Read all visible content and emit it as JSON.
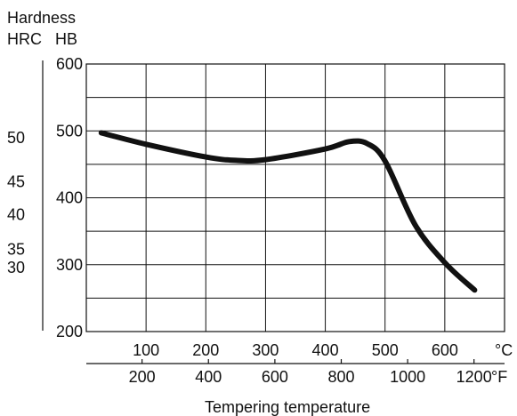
{
  "chart_data": {
    "type": "line",
    "ylabel": "Hardness",
    "y_units": {
      "hrc": "HRC",
      "hb": "HB"
    },
    "xlabel": "Tempering temperature",
    "x_unit_c": "°C",
    "x_unit_f": "°F",
    "xlim_c": [
      0,
      700
    ],
    "ylim_hb": [
      200,
      600
    ],
    "grid": true,
    "hb_ticks": [
      200,
      300,
      400,
      500,
      600
    ],
    "hrc_ticks": [
      {
        "label": "50",
        "hb": 490
      },
      {
        "label": "45",
        "hb": 424
      },
      {
        "label": "40",
        "hb": 375
      },
      {
        "label": "35",
        "hb": 323
      },
      {
        "label": "30",
        "hb": 296
      }
    ],
    "c_ticks": [
      100,
      200,
      300,
      400,
      500,
      600
    ],
    "f_ticks": [
      {
        "label": "200",
        "c": 93.3
      },
      {
        "label": "400",
        "c": 204.4
      },
      {
        "label": "600",
        "c": 315.6
      },
      {
        "label": "800",
        "c": 426.7
      },
      {
        "label": "1000",
        "c": 537.8
      },
      {
        "label": "1200",
        "c": 648.9
      }
    ],
    "series": [
      {
        "x": [
          25,
          100,
          200,
          250,
          300,
          400,
          440,
          470,
          500,
          550,
          600,
          650
        ],
        "y": [
          497,
          480,
          461,
          456,
          457,
          473,
          484,
          481,
          455,
          360,
          303,
          262
        ]
      }
    ]
  }
}
